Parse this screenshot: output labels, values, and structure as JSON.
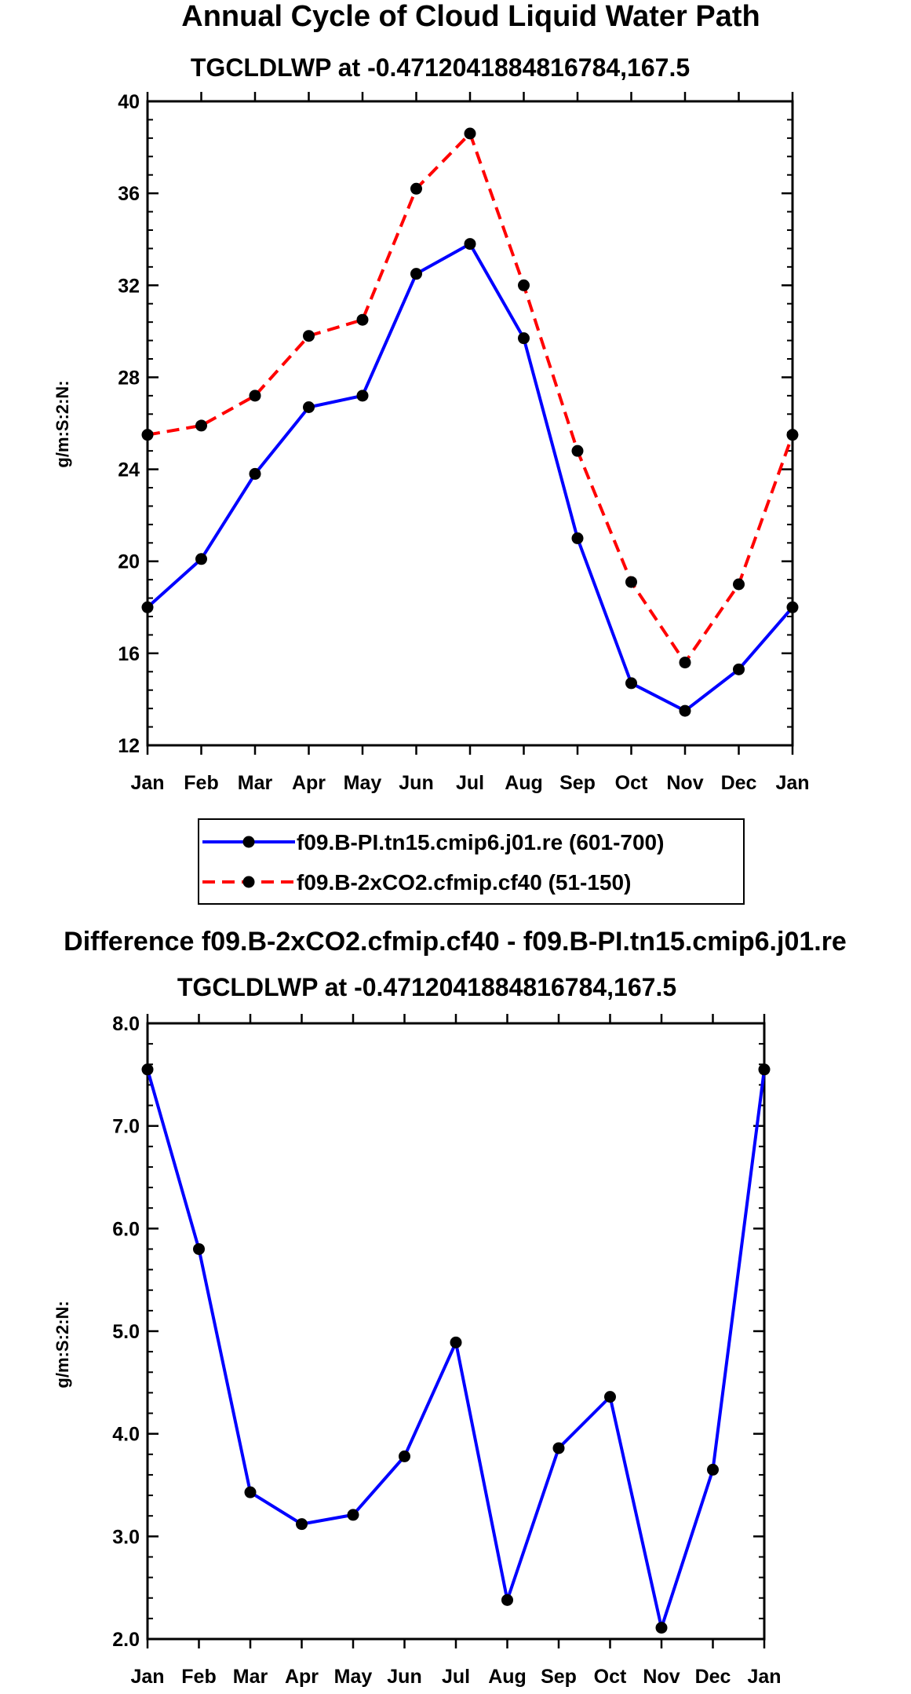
{
  "chart_data": [
    {
      "type": "line",
      "title": "Annual Cycle of Cloud Liquid Water Path",
      "subtitle": "TGCLDLWP at -0.4712041884816784,167.5",
      "ylabel": "g/m:S:2:N:",
      "xlabel": "",
      "ylim": [
        12,
        40
      ],
      "yticks": [
        12,
        16,
        20,
        24,
        28,
        32,
        36,
        40
      ],
      "ytick_labels": [
        "12",
        "16",
        "20",
        "24",
        "28",
        "32",
        "36",
        "40"
      ],
      "categories": [
        "Jan",
        "Feb",
        "Mar",
        "Apr",
        "May",
        "Jun",
        "Jul",
        "Aug",
        "Sep",
        "Oct",
        "Nov",
        "Dec",
        "Jan"
      ],
      "series": [
        {
          "name": "f09.B-PI.tn15.cmip6.j01.re (601-700)",
          "color": "#0000ff",
          "dash": "solid",
          "values": [
            18.0,
            20.1,
            23.8,
            26.7,
            27.2,
            32.5,
            33.8,
            29.7,
            21.0,
            14.7,
            13.5,
            15.3,
            18.0
          ]
        },
        {
          "name": "f09.B-2xCO2.cfmip.cf40 (51-150)",
          "color": "#ff0000",
          "dash": "dashed",
          "values": [
            25.5,
            25.9,
            27.2,
            29.8,
            30.5,
            36.2,
            38.6,
            32.0,
            24.8,
            19.1,
            15.6,
            19.0,
            25.5
          ]
        }
      ],
      "legend": [
        {
          "label": "f09.B-PI.tn15.cmip6.j01.re (601-700)",
          "color": "#0000ff",
          "dash": "solid"
        },
        {
          "label": "f09.B-2xCO2.cfmip.cf40 (51-150)",
          "color": "#ff0000",
          "dash": "dashed"
        }
      ]
    },
    {
      "type": "line",
      "title": "Difference f09.B-2xCO2.cfmip.cf40 - f09.B-PI.tn15.cmip6.j01.re",
      "subtitle": "TGCLDLWP at -0.4712041884816784,167.5",
      "ylabel": "g/m:S:2:N:",
      "xlabel": "",
      "ylim": [
        2.0,
        8.0
      ],
      "yticks": [
        2,
        3,
        4,
        5,
        6,
        7,
        8
      ],
      "ytick_labels": [
        "2.0",
        "3.0",
        "4.0",
        "5.0",
        "6.0",
        "7.0",
        "8.0"
      ],
      "categories": [
        "Jan",
        "Feb",
        "Mar",
        "Apr",
        "May",
        "Jun",
        "Jul",
        "Aug",
        "Sep",
        "Oct",
        "Nov",
        "Dec",
        "Jan"
      ],
      "series": [
        {
          "name": "difference",
          "color": "#0000ff",
          "dash": "solid",
          "values": [
            7.55,
            5.8,
            3.43,
            3.12,
            3.21,
            3.78,
            4.89,
            2.38,
            3.86,
            4.36,
            2.11,
            3.65,
            7.55
          ]
        }
      ]
    }
  ]
}
